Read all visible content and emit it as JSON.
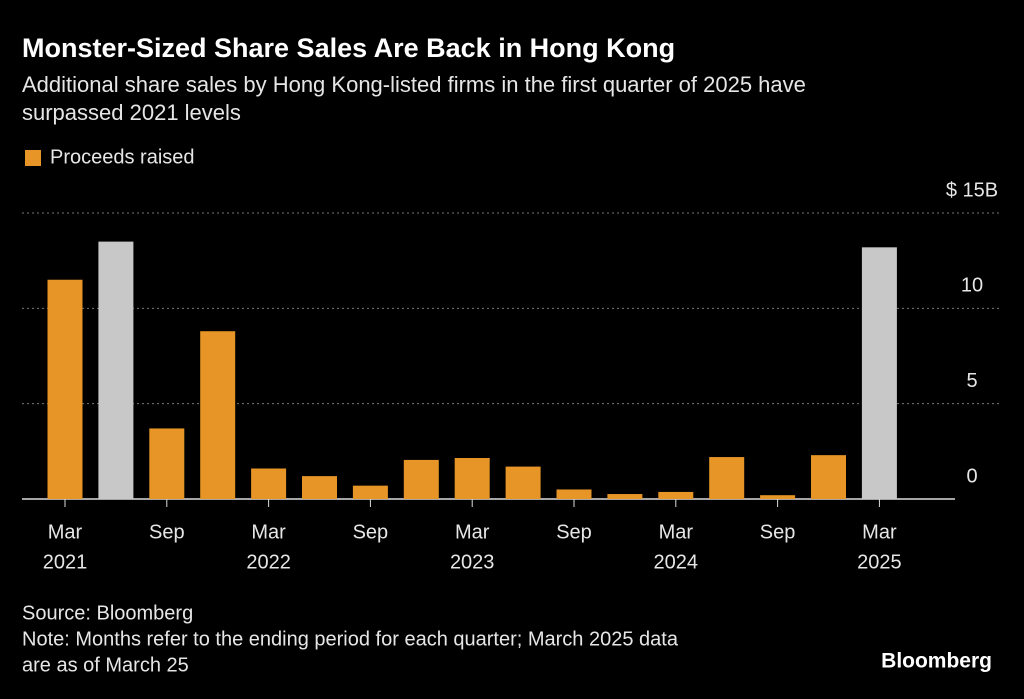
{
  "chart_data": {
    "type": "bar",
    "title": "Monster-Sized Share Sales Are Back in Hong Kong",
    "subtitle": [
      "Additional share sales by Hong Kong-listed firms in the first quarter of 2025 have",
      "surpassed 2021 levels"
    ],
    "categories": [
      "Mar",
      null,
      "Sep",
      null,
      "Mar",
      null,
      "Sep",
      null,
      "Mar",
      null,
      "Sep",
      null,
      "Mar",
      null,
      "Sep",
      null,
      "Mar"
    ],
    "category_years": [
      "2021",
      null,
      null,
      null,
      "2022",
      null,
      null,
      null,
      "2023",
      null,
      null,
      null,
      "2024",
      null,
      null,
      null,
      "2025"
    ],
    "series": [
      {
        "name": "Proceeds raised",
        "color": "#e69526",
        "values": [
          11.5,
          13.5,
          3.7,
          8.8,
          1.6,
          1.2,
          0.7,
          2.05,
          2.15,
          1.7,
          0.5,
          0.26,
          0.37,
          2.2,
          0.2,
          2.3,
          13.2
        ],
        "colors": [
          "#e69526",
          "#c8c8c8",
          "#e69526",
          "#e69526",
          "#e69526",
          "#e69526",
          "#e69526",
          "#e69526",
          "#e69526",
          "#e69526",
          "#e69526",
          "#e69526",
          "#e69526",
          "#e69526",
          "#e69526",
          "#e69526",
          "#c8c8c8"
        ]
      }
    ],
    "ylim": [
      0,
      15
    ],
    "yticks": [
      0,
      5,
      10,
      {
        "value": 15,
        "label": "$ 15B"
      }
    ],
    "grid": true,
    "source": "Source: Bloomberg",
    "note": [
      "Note: Months refer to the ending period for each quarter; March 2025 data",
      "are as of March 25"
    ],
    "brand": "Bloomberg"
  }
}
